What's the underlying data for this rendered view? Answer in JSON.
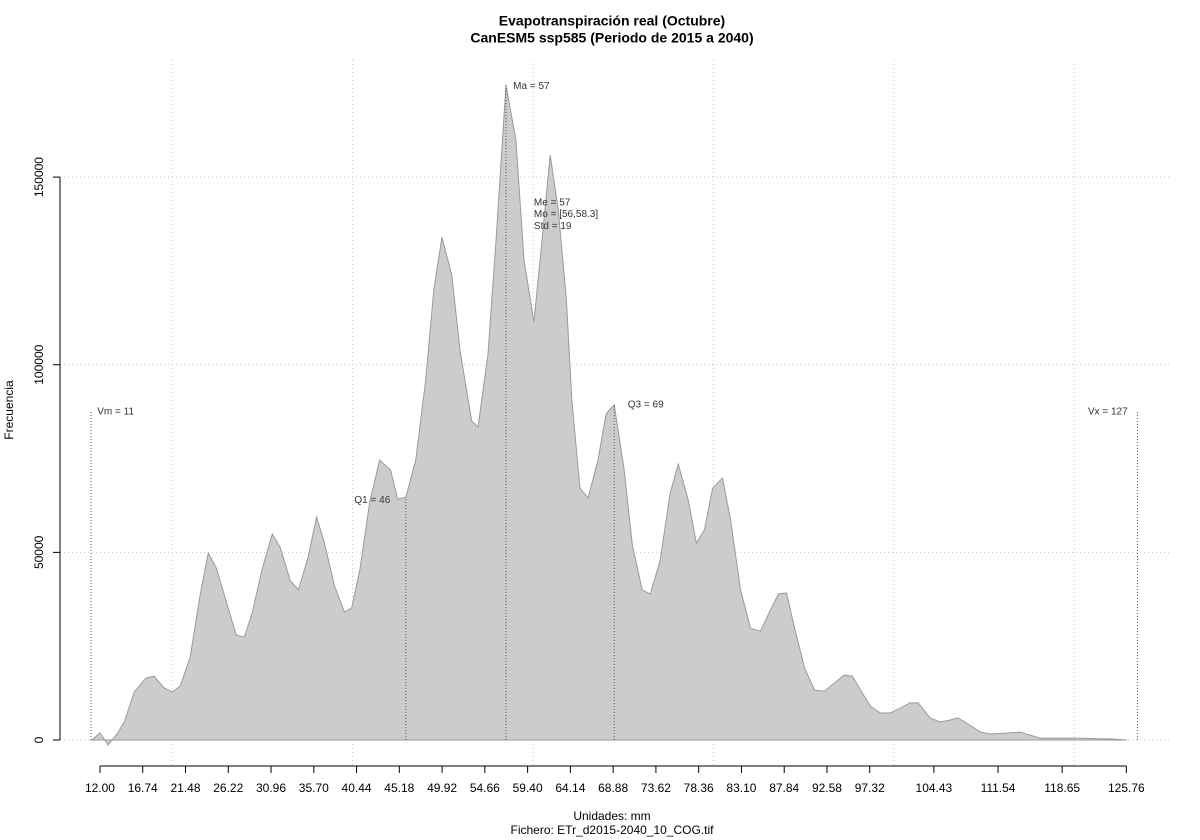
{
  "chart_data": {
    "type": "area",
    "title": "Evapotranspiración real (Octubre)",
    "subtitle": "CanESM5 ssp585 (Periodo de 2015 a 2040)",
    "xlabel": "Unidades: mm",
    "caption": "Fichero: ETr_d2015-2040_10_COG.tif",
    "ylabel": "Frecuencia",
    "color": "#cccccc",
    "x": [
      11.1,
      12.0,
      12.9,
      13.8,
      14.7,
      15.8,
      17.1,
      18.0,
      19.1,
      20.0,
      20.9,
      22.0,
      23.1,
      24.0,
      24.9,
      26.2,
      27.1,
      28.0,
      28.9,
      30.0,
      31.1,
      32.0,
      33.1,
      34.0,
      35.1,
      36.0,
      36.8,
      38.0,
      39.1,
      39.9,
      40.8,
      41.9,
      43.0,
      44.2,
      45.0,
      45.9,
      47.0,
      48.1,
      49.0,
      49.9,
      51.0,
      51.9,
      53.2,
      53.9,
      55.0,
      55.9,
      57.0,
      58.1,
      59.0,
      60.1,
      61.0,
      61.9,
      62.8,
      63.7,
      64.3,
      65.2,
      66.1,
      67.2,
      68.1,
      69.0,
      70.1,
      71.0,
      72.1,
      73.0,
      74.1,
      75.2,
      76.1,
      77.2,
      78.1,
      79.0,
      79.9,
      81.0,
      81.9,
      83.0,
      84.1,
      85.2,
      86.3,
      87.2,
      88.1,
      88.9,
      90.1,
      91.2,
      92.3,
      93.4,
      94.5,
      95.4,
      96.3,
      97.4,
      98.5,
      99.6,
      100.7,
      101.8,
      102.7,
      104.0,
      105.1,
      106.2,
      107.1,
      108.2,
      109.6,
      110.7,
      112.9,
      114.0,
      115.1,
      116.2,
      118.4,
      120.7,
      122.9,
      124.0,
      125.8
    ],
    "values": [
      0,
      1900,
      -1300,
      1300,
      4800,
      12800,
      16500,
      17000,
      13900,
      12800,
      14400,
      22100,
      38600,
      49800,
      45800,
      35200,
      28000,
      27400,
      34100,
      45800,
      54900,
      51200,
      42400,
      40000,
      49000,
      59400,
      53300,
      41000,
      34100,
      35200,
      45300,
      63400,
      74600,
      72000,
      64200,
      64700,
      74600,
      95900,
      119900,
      134000,
      123900,
      103900,
      85000,
      83400,
      102600,
      133200,
      174500,
      159900,
      127900,
      111400,
      133200,
      155900,
      141200,
      117200,
      90600,
      67100,
      64500,
      74600,
      86900,
      89300,
      72000,
      52000,
      40000,
      38900,
      48000,
      65800,
      73500,
      64000,
      52500,
      56000,
      67100,
      69800,
      58600,
      40000,
      29800,
      29000,
      34600,
      38900,
      39200,
      30700,
      19200,
      13300,
      13000,
      15200,
      17300,
      17000,
      13300,
      9000,
      7200,
      7200,
      8500,
      9900,
      9900,
      5900,
      4800,
      5300,
      5900,
      4300,
      2100,
      1600,
      1900,
      2100,
      1300,
      500,
      500,
      500,
      300,
      300,
      0
    ],
    "xlim": [
      7.57,
      130.6
    ],
    "ylim": [
      -7460,
      181200
    ],
    "yticks": [
      0,
      50000,
      100000,
      150000
    ],
    "xticks": [
      {
        "value": 12,
        "label": "12.00"
      },
      16.74,
      21.48,
      26.22,
      30.96,
      {
        "value": 35.7,
        "label": "35.70"
      },
      40.44,
      45.18,
      49.92,
      54.66,
      {
        "value": 59.4,
        "label": "59.40"
      },
      64.14,
      68.88,
      73.62,
      78.36,
      {
        "value": 83.1,
        "label": "83.10"
      },
      87.84,
      92.58,
      97.32,
      104.43,
      111.54,
      118.65,
      125.76
    ],
    "xgrid": [
      20,
      40,
      60,
      80,
      100,
      120
    ],
    "grid": true,
    "vlines": [
      {
        "x": 11,
        "y": 87400
      },
      {
        "x": 45.9,
        "y": 64700
      },
      {
        "x": 57,
        "y": 174500
      },
      {
        "x": 69,
        "y": 89300
      },
      {
        "x": 127,
        "y": 87400
      }
    ],
    "annotations": [
      {
        "text": "Vm = 11",
        "x": 11.7,
        "y": 87400
      },
      {
        "text": "Q1 = 46",
        "x": 40.2,
        "y": 63900
      },
      {
        "text": "Ma = 57",
        "x": 57.8,
        "y": 174200
      },
      {
        "text": "Me = 57",
        "x": 60.1,
        "y": 143100
      },
      {
        "text": "Mo = [56,58.3]",
        "x": 60.1,
        "y": 140100
      },
      {
        "text": "Std = 19",
        "x": 60.1,
        "y": 136900
      },
      {
        "text": "Q3 = 69",
        "x": 70.5,
        "y": 89300
      },
      {
        "text": "Vx = 127",
        "x": 121.5,
        "y": 87400
      }
    ]
  }
}
